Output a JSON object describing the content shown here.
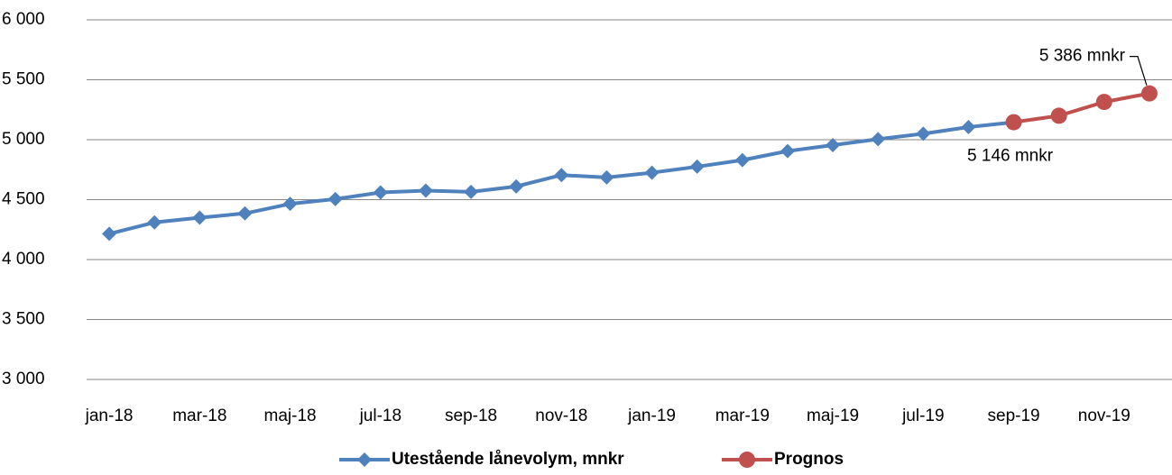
{
  "chart_data": {
    "type": "line",
    "categories": [
      "jan-18",
      null,
      "mar-18",
      null,
      "maj-18",
      null,
      "jul-18",
      null,
      "sep-18",
      null,
      "nov-18",
      null,
      "jan-19",
      null,
      "mar-19",
      null,
      "maj-19",
      null,
      "jul-19",
      null,
      "sep-19",
      null,
      "nov-19",
      null
    ],
    "series": [
      {
        "name": "Utestående lånevolym, mnkr",
        "color": "#4f81bd",
        "marker": "diamond",
        "values": [
          4215,
          4310,
          4350,
          4385,
          4465,
          4505,
          4560,
          4575,
          4565,
          4610,
          4705,
          4685,
          4725,
          4775,
          4830,
          4905,
          4955,
          5005,
          5050,
          5105,
          5146,
          null,
          null,
          null
        ]
      },
      {
        "name": "Prognos",
        "color": "#c0504d",
        "marker": "circle",
        "values": [
          null,
          null,
          null,
          null,
          null,
          null,
          null,
          null,
          null,
          null,
          null,
          null,
          null,
          null,
          null,
          null,
          null,
          null,
          null,
          null,
          5146,
          5200,
          5315,
          5386
        ],
        "value_labels": [
          null,
          null,
          null,
          null,
          null,
          null,
          null,
          null,
          null,
          null,
          null,
          null,
          null,
          null,
          null,
          null,
          null,
          null,
          null,
          null,
          "5 146 mnkr",
          null,
          null,
          "5 386 mnkr"
        ]
      }
    ],
    "ylim": [
      3000,
      6000
    ],
    "yticks": [
      {
        "value": 3000,
        "label": "3 000"
      },
      {
        "value": 3500,
        "label": "3 500"
      },
      {
        "value": 4000,
        "label": "4 000"
      },
      {
        "value": 4500,
        "label": "4 500"
      },
      {
        "value": 5000,
        "label": "5 000"
      },
      {
        "value": 5500,
        "label": "5 500"
      },
      {
        "value": 6000,
        "label": "6 000"
      }
    ],
    "grid": true,
    "legend": "bottom"
  }
}
